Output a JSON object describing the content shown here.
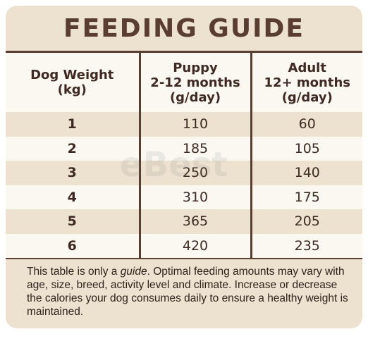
{
  "title": "FEEDING GUIDE",
  "headers": [
    [
      "Dog Weight",
      "(kg)"
    ],
    [
      "Puppy",
      "2-12 months",
      "(g/day)"
    ],
    [
      "Adult",
      "12+ months",
      "(g/day)"
    ]
  ],
  "rows": [
    {
      "weight": "1",
      "puppy": "110",
      "adult": "60"
    },
    {
      "weight": "2",
      "puppy": "185",
      "adult": "105"
    },
    {
      "weight": "3",
      "puppy": "250",
      "adult": "140"
    },
    {
      "weight": "4",
      "puppy": "310",
      "adult": "175"
    },
    {
      "weight": "5",
      "puppy": "365",
      "adult": "205"
    },
    {
      "weight": "6",
      "puppy": "420",
      "adult": "235"
    }
  ],
  "note": {
    "before": "This table is only a ",
    "emphasis": "guide",
    "after": ". Optimal feeding amounts may vary with age, size, breed, activity level and climate. Increase or decrease the calories your dog consumes daily to ensure a healthy weight is maintained."
  },
  "watermark": "eBest",
  "colors": {
    "brown": "#5a3d31",
    "beige": "#ede2cf",
    "cream": "#fbf8f2"
  }
}
